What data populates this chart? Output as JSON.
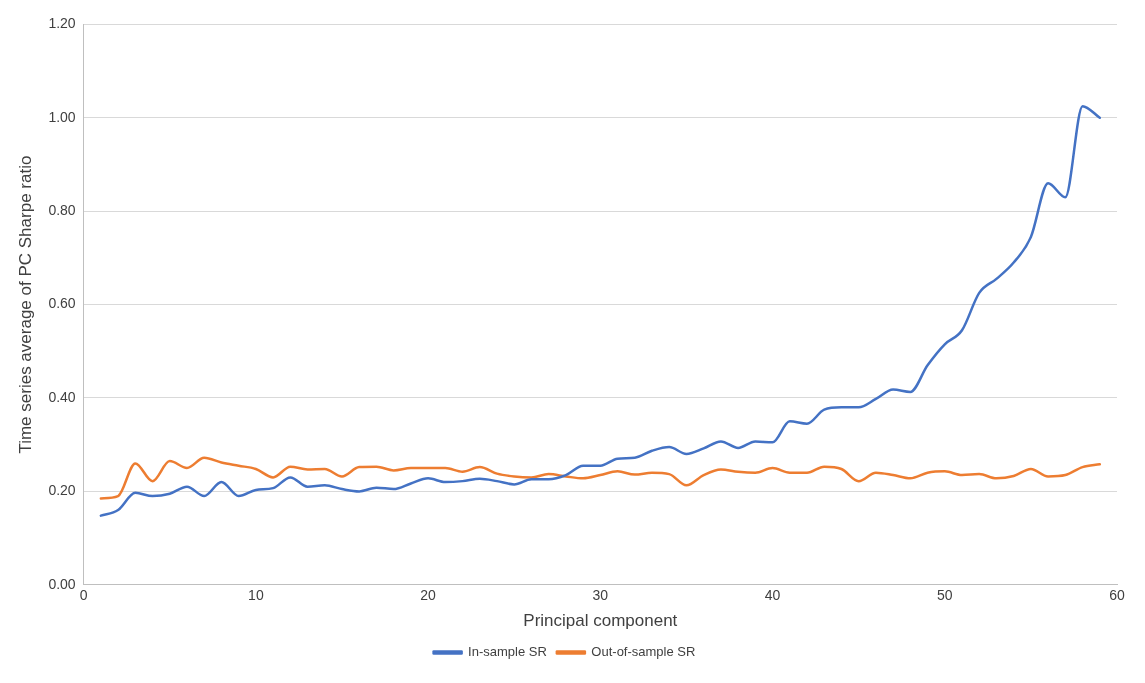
{
  "chart_data": {
    "type": "line",
    "xlabel": "Principal component",
    "ylabel": "Time series average of PC Sharpe ratio",
    "x": [
      1,
      2,
      3,
      4,
      5,
      6,
      7,
      8,
      9,
      10,
      11,
      12,
      13,
      14,
      15,
      16,
      17,
      18,
      19,
      20,
      21,
      22,
      23,
      24,
      25,
      26,
      27,
      28,
      29,
      30,
      31,
      32,
      33,
      34,
      35,
      36,
      37,
      38,
      39,
      40,
      41,
      42,
      43,
      44,
      45,
      46,
      47,
      48,
      49,
      50,
      51,
      52,
      53,
      54,
      55,
      56,
      57,
      58,
      59
    ],
    "series": [
      {
        "name": "In-sample SR",
        "color": "#4472c4",
        "values": [
          0.148,
          0.16,
          0.197,
          0.19,
          0.195,
          0.21,
          0.19,
          0.22,
          0.19,
          0.203,
          0.207,
          0.23,
          0.21,
          0.213,
          0.205,
          0.2,
          0.208,
          0.205,
          0.217,
          0.228,
          0.22,
          0.222,
          0.227,
          0.222,
          0.215,
          0.226,
          0.226,
          0.235,
          0.255,
          0.255,
          0.27,
          0.272,
          0.287,
          0.295,
          0.28,
          0.292,
          0.307,
          0.293,
          0.307,
          0.305,
          0.35,
          0.345,
          0.375,
          0.38,
          0.38,
          0.398,
          0.418,
          0.413,
          0.47,
          0.515,
          0.545,
          0.625,
          0.655,
          0.69,
          0.745,
          0.86,
          0.83,
          1.025,
          1.0
        ]
      },
      {
        "name": "Out-of-sample SR",
        "color": "#ed7d31",
        "values": [
          0.185,
          0.19,
          0.26,
          0.222,
          0.265,
          0.25,
          0.272,
          0.262,
          0.255,
          0.248,
          0.23,
          0.253,
          0.247,
          0.248,
          0.232,
          0.252,
          0.253,
          0.245,
          0.25,
          0.25,
          0.25,
          0.242,
          0.252,
          0.238,
          0.232,
          0.23,
          0.237,
          0.232,
          0.228,
          0.235,
          0.243,
          0.236,
          0.24,
          0.237,
          0.213,
          0.235,
          0.247,
          0.242,
          0.24,
          0.25,
          0.24,
          0.24,
          0.253,
          0.248,
          0.222,
          0.24,
          0.235,
          0.228,
          0.24,
          0.243,
          0.235,
          0.237,
          0.228,
          0.233,
          0.248,
          0.232,
          0.235,
          0.252,
          0.258
        ]
      }
    ],
    "xlim": [
      0,
      60
    ],
    "xticks": [
      0,
      10,
      20,
      30,
      40,
      50,
      60
    ],
    "ylim": [
      0,
      1.2
    ],
    "yticks": [
      {
        "value": 0,
        "label": "0.00"
      },
      {
        "value": 0.2,
        "label": "0.20"
      },
      {
        "value": 0.4,
        "label": "0.40"
      },
      {
        "value": 0.6,
        "label": "0.60"
      },
      {
        "value": 0.8,
        "label": "0.80"
      },
      {
        "value": 1,
        "label": "1.00"
      },
      {
        "value": 1.2,
        "label": "1.20"
      }
    ],
    "grid": "y",
    "legend": "bottom",
    "marker": "none",
    "line_style": "solid"
  }
}
